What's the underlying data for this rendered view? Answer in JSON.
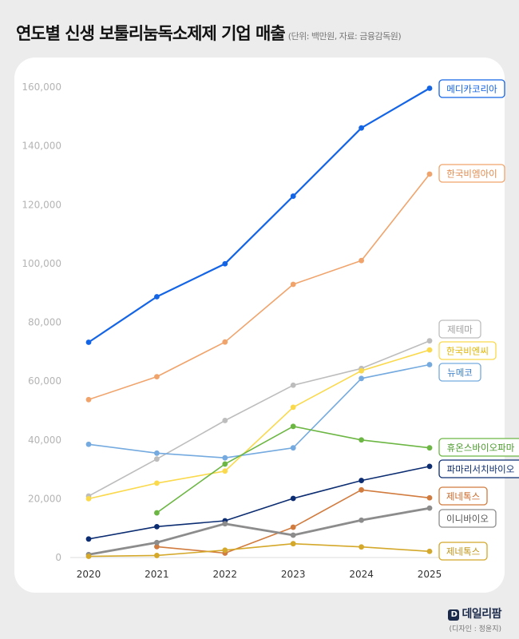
{
  "header": {
    "title": "연도별 신생 보툴리눔독소제제 기업 매출",
    "subtitle": "(단위: 백만원, 자료: 금융감독원)"
  },
  "brand": {
    "name": "데일리팜",
    "logo_letter": "D",
    "credit": "(디자인 : 정윤지)"
  },
  "chart_data": {
    "type": "line",
    "title": "연도별 신생 보툴리눔독소제제 기업 매출",
    "subtitle": "(단위: 백만원, 자료: 금융감독원)",
    "xlabel": "",
    "ylabel": "",
    "x": [
      "2020",
      "2021",
      "2022",
      "2023",
      "2024",
      "2025"
    ],
    "y_ticks": [
      "0",
      "20,000",
      "40,000",
      "60,000",
      "80,000",
      "100,000",
      "120,000",
      "140,000",
      "160,000"
    ],
    "ylim": [
      0,
      160000
    ],
    "grid": false,
    "legend": "labels at line ends (right)",
    "series": [
      {
        "name": "메디카코리아",
        "color": "#1464e6",
        "values": [
          73200,
          88700,
          99900,
          122900,
          146100,
          159600
        ]
      },
      {
        "name": "한국비엠아이",
        "color": "#f0a46c",
        "values": [
          53700,
          61500,
          73300,
          92900,
          101000,
          130400
        ]
      },
      {
        "name": "제테마",
        "color": "#bdbdbd",
        "values": [
          20900,
          33500,
          46600,
          58600,
          64300,
          73700
        ]
      },
      {
        "name": "한국비엔씨",
        "color": "#fad94c",
        "values": [
          20000,
          25300,
          29400,
          51100,
          63500,
          70600
        ]
      },
      {
        "name": "뉴메코",
        "color": "#74aadf",
        "values": [
          38500,
          35500,
          33900,
          37300,
          60900,
          65600
        ]
      },
      {
        "name": "휴온스바이오파마",
        "color": "#6cb643",
        "values": [
          null,
          15200,
          31800,
          44600,
          40000,
          37300
        ]
      },
      {
        "name": "파마리서치바이오",
        "color": "#0c2d72",
        "values": [
          6300,
          10500,
          12500,
          20100,
          26200,
          31000
        ]
      },
      {
        "name": "제네톡스",
        "color": "#d17b3e",
        "values": [
          null,
          3700,
          1500,
          10300,
          23000,
          20300
        ]
      },
      {
        "name": "이니바이오",
        "color": "#8c8c8c",
        "values": [
          1000,
          5100,
          11500,
          7600,
          12700,
          16800
        ]
      },
      {
        "name": "제네톡스",
        "color": "#d4a82a",
        "values": [
          400,
          700,
          2500,
          4700,
          3600,
          2100
        ]
      }
    ]
  }
}
